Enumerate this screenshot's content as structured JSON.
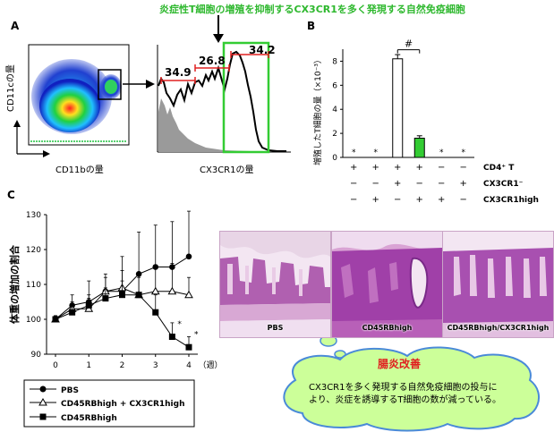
{
  "headline": "炎症性T細胞の増殖を抑制するCX3CR1を多く発現する自然免疫細胞",
  "panel_labels": {
    "a": "A",
    "b": "B",
    "c": "C"
  },
  "panel_a": {
    "y_label": "CD11cの量",
    "x_label_flow": "CD11bの量",
    "x_label_hist": "CX3CR1の量",
    "gates": [
      {
        "label": "34.9"
      },
      {
        "label": "26.8"
      },
      {
        "label": "34.2"
      }
    ]
  },
  "chart_data": [
    {
      "type": "bar",
      "panel": "B",
      "ylabel": "増殖したT細胞の量（×10⁻³）",
      "ylim": [
        0,
        9
      ],
      "yticks": [
        0,
        2,
        4,
        6,
        8
      ],
      "columns": 6,
      "values": [
        0,
        0,
        8.2,
        1.6,
        0,
        0
      ],
      "errors": [
        0,
        0,
        0.35,
        0.2,
        0,
        0
      ],
      "colors": [
        "#ffffff",
        "#ffffff",
        "#ffffff",
        "#33cc33",
        "#ffffff",
        "#ffffff"
      ],
      "star_marks": [
        "*",
        "*",
        "",
        "",
        "*",
        "*"
      ],
      "significance": "#",
      "row_labels": [
        "CD4⁺ T",
        "CX3CR1⁻",
        "CX3CR1high"
      ],
      "rows": [
        [
          "+",
          "+",
          "+",
          "+",
          "−",
          "−"
        ],
        [
          "−",
          "−",
          "+",
          "−",
          "−",
          "+"
        ],
        [
          "−",
          "+",
          "−",
          "+",
          "+",
          "−"
        ]
      ]
    },
    {
      "type": "line",
      "panel": "C",
      "ylabel": "体重の増加の割合",
      "xlabel": "（週）",
      "xlim": [
        0,
        4
      ],
      "ylim": [
        90,
        130
      ],
      "xticks": [
        0,
        1,
        2,
        3,
        4
      ],
      "yticks": [
        90,
        100,
        110,
        120,
        130
      ],
      "series": [
        {
          "name": "PBS",
          "marker": "circle-filled",
          "x": [
            0,
            0.5,
            1,
            1.5,
            2,
            2.5,
            3,
            3.5,
            4
          ],
          "y": [
            100,
            104,
            105,
            108,
            108,
            113,
            115,
            115,
            118
          ],
          "err": [
            1,
            3,
            6,
            5,
            10,
            12,
            12,
            13,
            13
          ]
        },
        {
          "name": "CD45RBhigh + CX3CR1high",
          "marker": "triangle-open",
          "x": [
            0,
            0.5,
            1,
            1.5,
            2,
            2.5,
            3,
            3.5,
            4
          ],
          "y": [
            100,
            103,
            103,
            108,
            109,
            107,
            108,
            108,
            107
          ],
          "err": [
            1,
            2,
            3,
            4,
            5,
            6,
            7,
            8,
            5
          ]
        },
        {
          "name": "CD45RBhigh",
          "marker": "square-filled",
          "x": [
            0,
            0.5,
            1,
            1.5,
            2,
            2.5,
            3,
            3.5,
            4
          ],
          "y": [
            100,
            102,
            104,
            106,
            107,
            107,
            102,
            95,
            92
          ],
          "err": [
            1,
            2,
            3,
            3,
            4,
            5,
            5,
            4,
            3
          ]
        }
      ],
      "star_marks": [
        {
          "x": 3.5,
          "y": 98,
          "text": "*"
        },
        {
          "x": 4,
          "y": 95,
          "text": "*"
        }
      ],
      "legend": "bottom"
    }
  ],
  "histology": [
    {
      "label": "PBS"
    },
    {
      "label": "CD45RBhigh"
    },
    {
      "label": "CD45RBhigh/CX3CR1high"
    }
  ],
  "callout": {
    "title": "腸炎改善",
    "body": "CX3CR1を多く発現する自然免疫細胞の投与に\nより、炎症を誘導するT細胞の数が減っている。"
  },
  "colors": {
    "green": "#33cc33",
    "headline": "#2eb82e",
    "red": "#e02020",
    "cloud_fill": "#ccff99",
    "cloud_stroke": "#4a8ad8",
    "histology": "#c97fc2"
  }
}
